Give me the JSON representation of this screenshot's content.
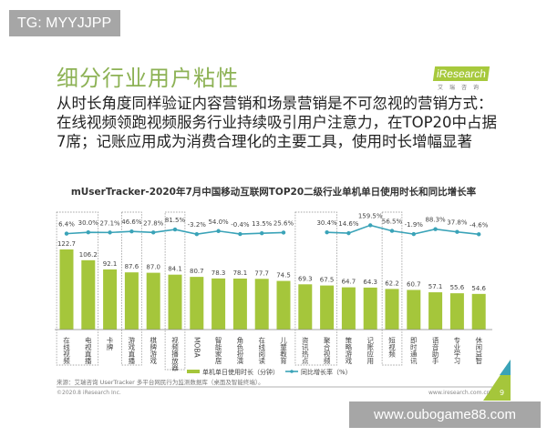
{
  "watermark_top": "TG: MYYJJPP",
  "watermark_bottom": "www.oubogame88.com",
  "slide": {
    "title": "细分行业用户粘性",
    "subtitle": "从时长角度同样验证内容营销和场景营销是不可忽视的营销方式：在线视频领跑视频服务行业持续吸引用户注意力，在TOP20中占据7席；记账应用成为消费合理化的主要工具，使用时长增幅显著",
    "logo_text": "iResearch",
    "logo_cn": "艾瑞咨询",
    "source": "来源：艾瑞咨询 UserTracker 多平台网民行为监测数据库（桌面及智能终端）。",
    "copyright": "©2020.8 iResearch Inc.",
    "website": "www.iresearch.com.cn",
    "page": "9"
  },
  "colors": {
    "bar": "#a5c63b",
    "line": "#3aa3b8",
    "title": "#8db255"
  },
  "chart_data": {
    "type": "bar",
    "title": "mUserTracker-2020年7月中国移动互联网TOP20二级行业单机单日使用时长和同比增长率",
    "categories": [
      "在线视频",
      "电视直播",
      "卡牌",
      "游戏直播",
      "棋牌游戏",
      "视频播放器",
      "MOBA",
      "智能家居",
      "角色扮演",
      "在线阅读",
      "儿童教育",
      "资讯热点",
      "聚合视频",
      "策略游戏",
      "记账应用",
      "短视频",
      "即时通讯",
      "语音助手",
      "专业学习",
      "休闲益智"
    ],
    "series": [
      {
        "name": "单机单日使用时长（分钟）",
        "type": "bar",
        "values": [
          122.7,
          106.2,
          92.1,
          87.6,
          87.0,
          84.1,
          80.7,
          78.3,
          78.1,
          77.7,
          74.5,
          69.3,
          67.5,
          64.7,
          64.3,
          62.2,
          60.7,
          57.1,
          55.6,
          54.6
        ]
      },
      {
        "name": "同比增长率（%）",
        "type": "line",
        "values": [
          6.4,
          30.0,
          27.1,
          46.6,
          27.8,
          81.5,
          -3.2,
          54.0,
          -0.4,
          13.5,
          25.6,
          null,
          30.4,
          14.6,
          159.5,
          56.5,
          -1.9,
          88.3,
          37.8,
          -4.6
        ]
      }
    ],
    "highlighted_groups": [
      [
        0,
        1
      ],
      [
        3
      ],
      [
        5
      ],
      [
        11,
        12
      ],
      [
        15
      ]
    ],
    "legend": "bottom"
  }
}
